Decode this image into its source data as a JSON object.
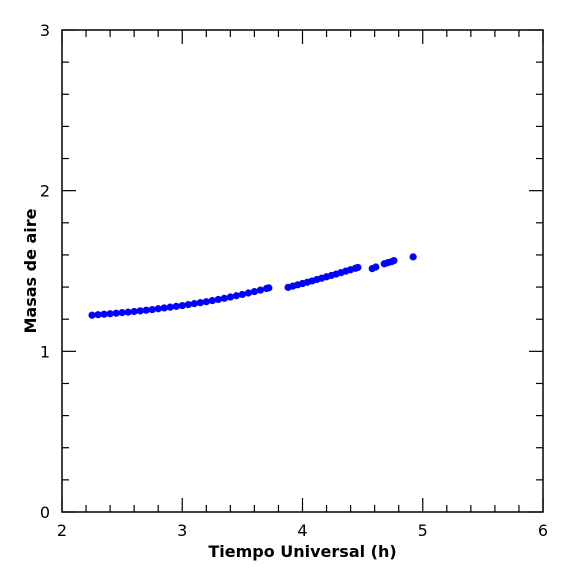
{
  "chart_data": {
    "type": "scatter",
    "xlabel": "Tiempo Universal (h)",
    "ylabel": "Masas de aire",
    "xlim": [
      2,
      6
    ],
    "ylim": [
      0,
      3
    ],
    "x_ticks": [
      "2",
      "3",
      "4",
      "5",
      "6"
    ],
    "y_ticks": [
      "0",
      "1",
      "2",
      "3"
    ],
    "grid": false,
    "marker_color": "#0000ff",
    "series": [
      {
        "x": [
          2.25,
          2.3,
          2.35,
          2.4,
          2.45,
          2.5,
          2.55,
          2.6,
          2.65,
          2.7,
          2.75,
          2.8,
          2.85,
          2.9,
          2.95,
          3.0,
          3.05,
          3.1,
          3.15,
          3.2,
          3.25,
          3.3,
          3.35,
          3.4,
          3.45,
          3.5,
          3.55,
          3.6,
          3.65,
          3.7,
          3.72,
          3.88,
          3.92,
          3.96,
          4.0,
          4.04,
          4.08,
          4.12,
          4.16,
          4.2,
          4.24,
          4.28,
          4.32,
          4.36,
          4.4,
          4.44,
          4.46,
          4.58,
          4.61,
          4.68,
          4.71,
          4.74,
          4.76,
          4.92
        ],
        "y": [
          1.225,
          1.228,
          1.231,
          1.234,
          1.237,
          1.241,
          1.244,
          1.248,
          1.252,
          1.256,
          1.26,
          1.265,
          1.27,
          1.275,
          1.28,
          1.285,
          1.291,
          1.297,
          1.303,
          1.309,
          1.316,
          1.323,
          1.33,
          1.338,
          1.346,
          1.354,
          1.363,
          1.372,
          1.381,
          1.391,
          1.395,
          1.398,
          1.406,
          1.414,
          1.422,
          1.43,
          1.438,
          1.447,
          1.455,
          1.464,
          1.472,
          1.481,
          1.49,
          1.499,
          1.508,
          1.517,
          1.522,
          1.515,
          1.525,
          1.545,
          1.552,
          1.558,
          1.565,
          1.588
        ]
      }
    ]
  }
}
